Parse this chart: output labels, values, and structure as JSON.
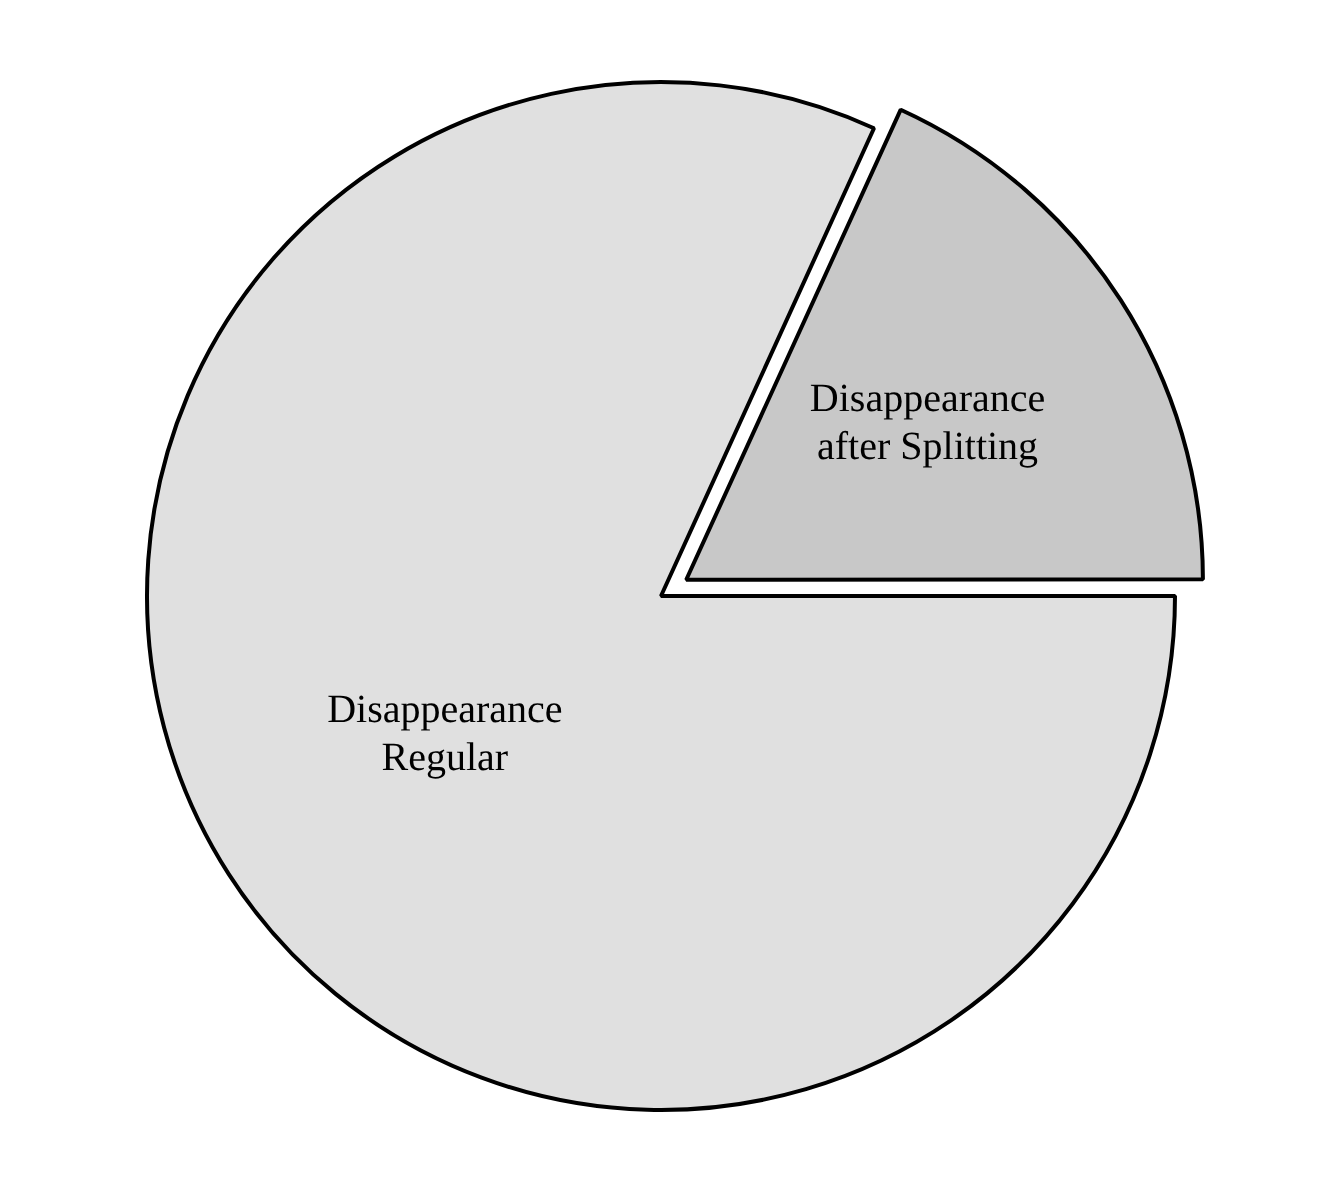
{
  "chart_data": {
    "type": "pie",
    "categories": [
      "Disappearance after Splitting",
      "Disappearance Regular"
    ],
    "values": [
      18.2,
      81.8
    ],
    "colors": [
      "#c8c8c8",
      "#e0e0e0"
    ],
    "legend": false
  }
}
